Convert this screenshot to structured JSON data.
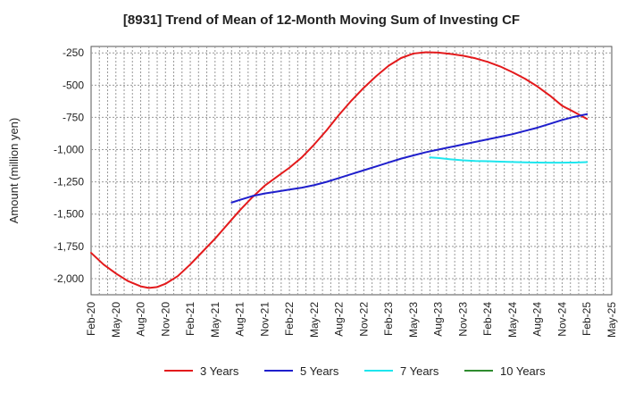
{
  "chart_data": {
    "type": "line",
    "title": "[8931]  Trend of Mean of 12-Month Moving Sum of Investing CF",
    "xlabel": "",
    "ylabel": "Amount (million yen)",
    "ylim": [
      -2125,
      -200
    ],
    "yticks": [
      -250,
      -500,
      -750,
      -1000,
      -1250,
      -1500,
      -1750,
      -2000
    ],
    "ytick_labels": [
      "-250",
      "-500",
      "-750",
      "-1,000",
      "-1,250",
      "-1,500",
      "-1,750",
      "-2,000"
    ],
    "categories": [
      "Feb-20",
      "May-20",
      "Aug-20",
      "Nov-20",
      "Feb-21",
      "May-21",
      "Aug-21",
      "Nov-21",
      "Feb-22",
      "May-22",
      "Aug-22",
      "Nov-22",
      "Feb-23",
      "May-23",
      "Aug-23",
      "Nov-23",
      "Feb-24",
      "May-24",
      "Aug-24",
      "Nov-24",
      "Feb-25",
      "May-25"
    ],
    "grid": true,
    "legend_position": "bottom",
    "series": [
      {
        "name": "3 Years",
        "color": "#e31a1c",
        "x": [
          0,
          0.5,
          1,
          1.5,
          2,
          2.33,
          2.67,
          3,
          3.5,
          4,
          4.5,
          5,
          5.5,
          6,
          6.5,
          7,
          7.5,
          8,
          8.5,
          9,
          9.5,
          10,
          10.5,
          11,
          11.5,
          12,
          12.5,
          13,
          13.5,
          14,
          14.5,
          15,
          15.5,
          16,
          16.5,
          17,
          17.5,
          18,
          18.5,
          19,
          19.5,
          20
        ],
        "values": [
          -1800,
          -1890,
          -1960,
          -2020,
          -2060,
          -2072,
          -2065,
          -2040,
          -1980,
          -1890,
          -1790,
          -1690,
          -1580,
          -1470,
          -1370,
          -1280,
          -1210,
          -1140,
          -1060,
          -960,
          -850,
          -730,
          -620,
          -520,
          -430,
          -350,
          -290,
          -255,
          -245,
          -248,
          -258,
          -272,
          -292,
          -320,
          -355,
          -400,
          -450,
          -510,
          -580,
          -660,
          -710,
          -762
        ]
      },
      {
        "name": "5 Years",
        "color": "#1f1fcc",
        "x": [
          5.67,
          6,
          6.5,
          7,
          7.5,
          8,
          8.5,
          9,
          9.5,
          10,
          10.5,
          11,
          11.5,
          12,
          12.5,
          13,
          13.5,
          14,
          14.5,
          15,
          15.5,
          16,
          16.5,
          17,
          17.5,
          18,
          18.5,
          19,
          19.5,
          20
        ],
        "values": [
          -1410,
          -1390,
          -1360,
          -1340,
          -1325,
          -1310,
          -1295,
          -1275,
          -1250,
          -1220,
          -1190,
          -1160,
          -1130,
          -1100,
          -1070,
          -1045,
          -1020,
          -1000,
          -980,
          -960,
          -940,
          -920,
          -900,
          -880,
          -855,
          -830,
          -800,
          -770,
          -745,
          -725
        ]
      },
      {
        "name": "7 Years",
        "color": "#1ee6ee",
        "x": [
          13.67,
          14,
          14.5,
          15,
          15.5,
          16,
          16.5,
          17,
          17.5,
          18,
          18.5,
          19,
          19.5,
          20
        ],
        "values": [
          -1060,
          -1065,
          -1075,
          -1083,
          -1088,
          -1090,
          -1093,
          -1096,
          -1098,
          -1100,
          -1101,
          -1101,
          -1100,
          -1097
        ]
      },
      {
        "name": "10 Years",
        "color": "#2e8b2e",
        "x": [],
        "values": []
      }
    ]
  }
}
